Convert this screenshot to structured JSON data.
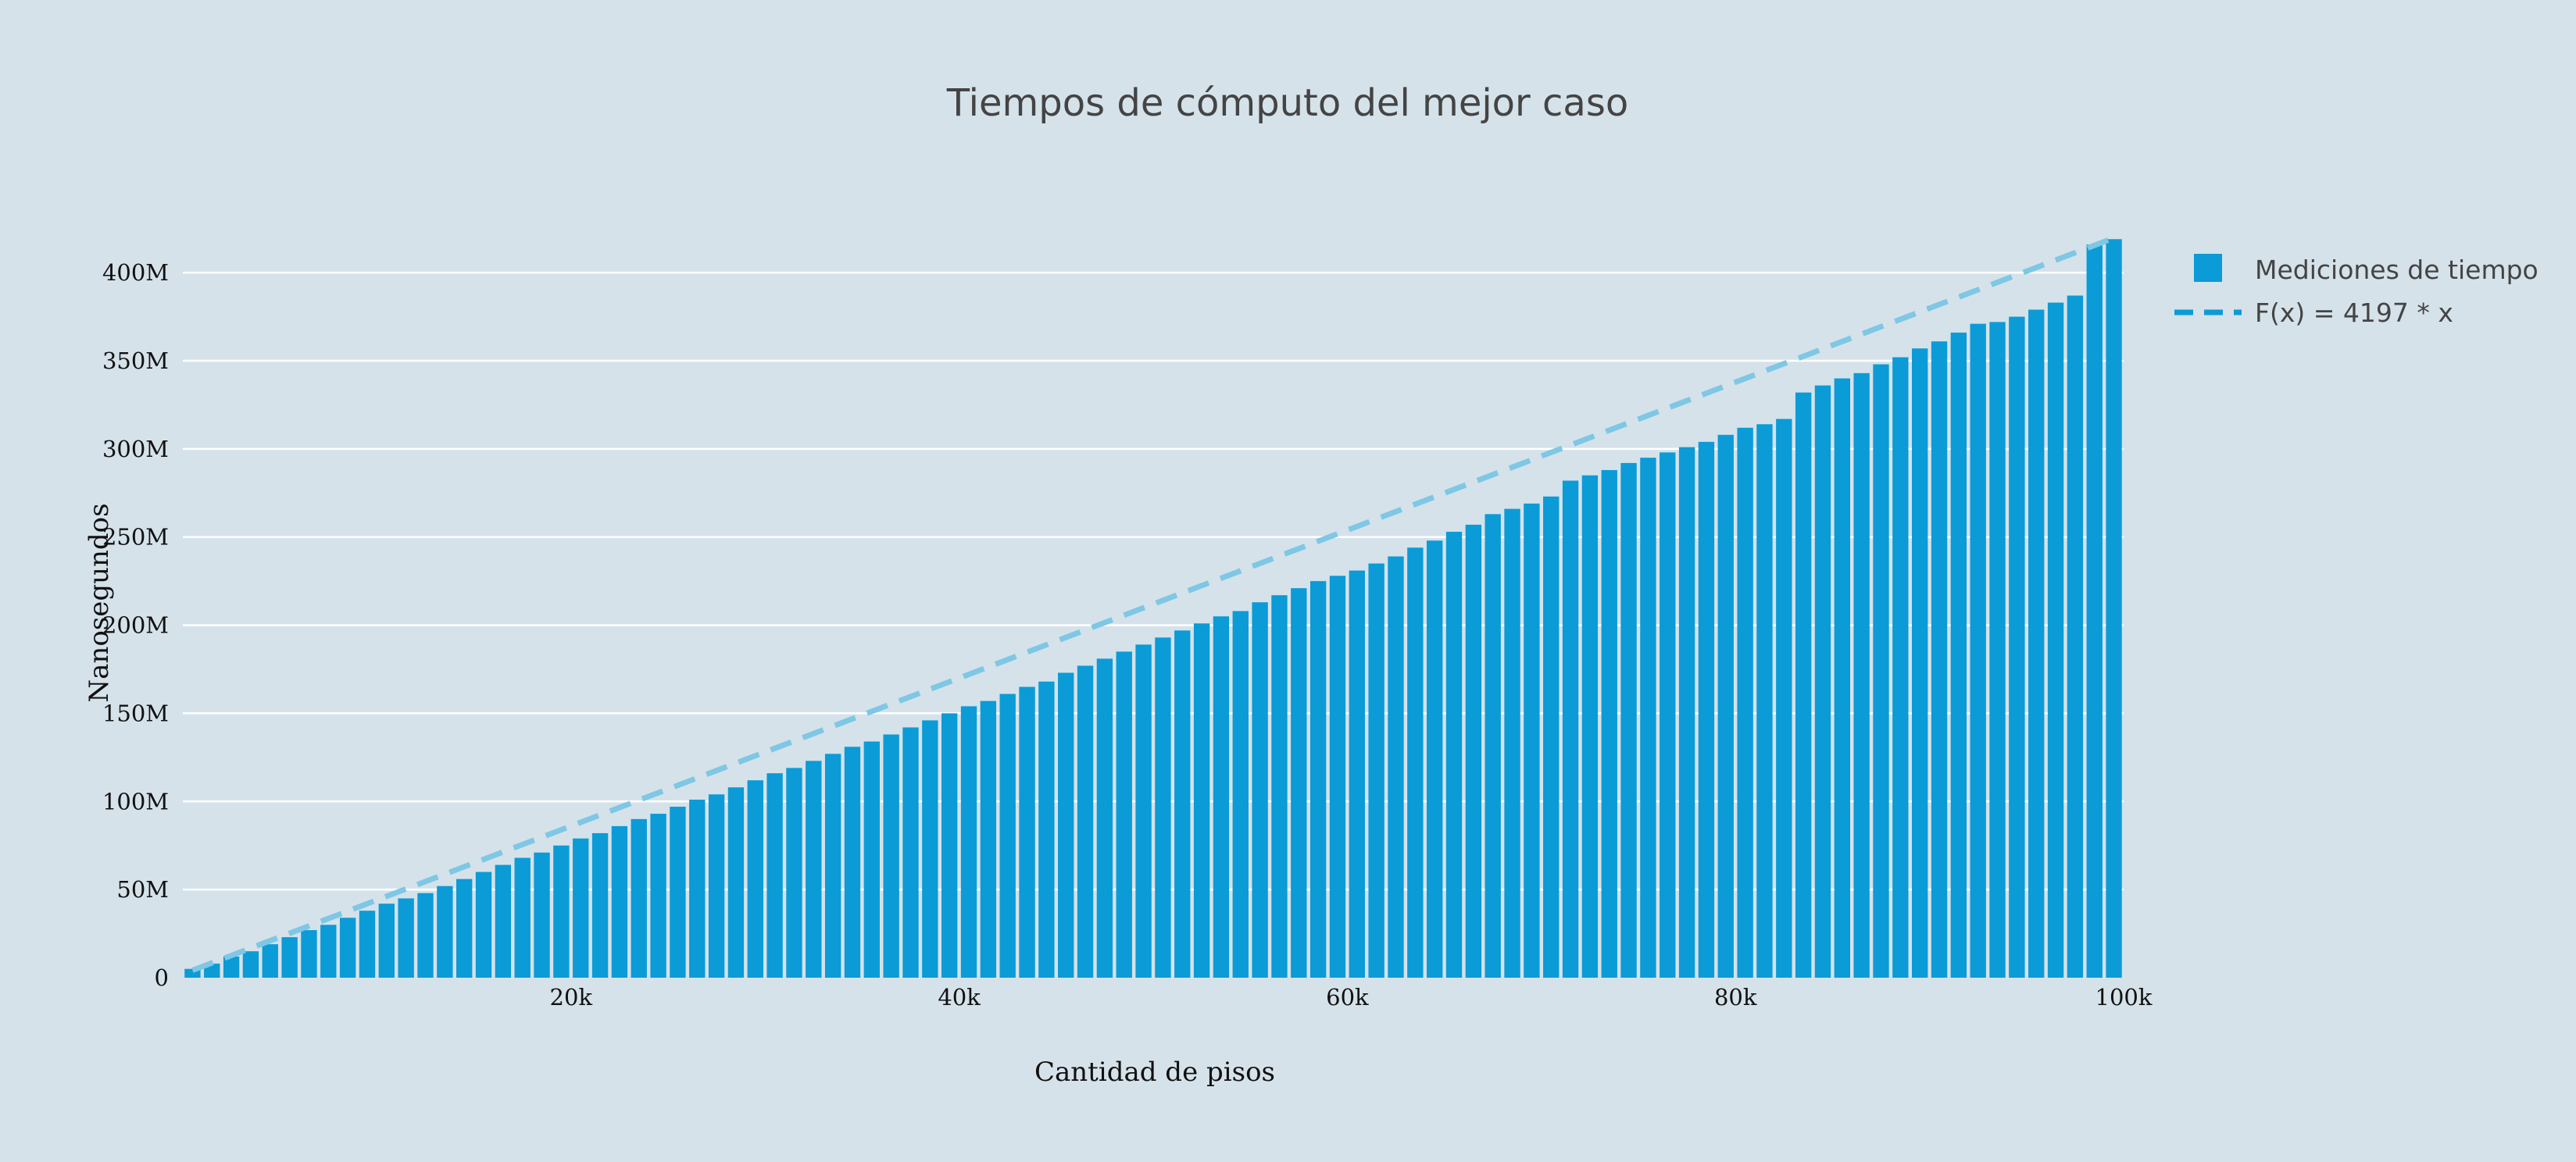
{
  "chart_data": {
    "type": "bar",
    "title": "Tiempos de cómputo del mejor caso",
    "xlabel": "Cantidad de pisos",
    "ylabel": "Nanosegundos",
    "xlim": [
      0,
      100000
    ],
    "ylim": [
      0,
      420000000
    ],
    "x_ticks": [
      {
        "value": 20000,
        "label": "20k"
      },
      {
        "value": 40000,
        "label": "40k"
      },
      {
        "value": 60000,
        "label": "60k"
      },
      {
        "value": 80000,
        "label": "80k"
      },
      {
        "value": 100000,
        "label": "100k"
      }
    ],
    "y_ticks": [
      {
        "value": 0,
        "label": "0"
      },
      {
        "value": 50000000,
        "label": "50M"
      },
      {
        "value": 100000000,
        "label": "100M"
      },
      {
        "value": 150000000,
        "label": "150M"
      },
      {
        "value": 200000000,
        "label": "200M"
      },
      {
        "value": 250000000,
        "label": "250M"
      },
      {
        "value": 300000000,
        "label": "300M"
      },
      {
        "value": 350000000,
        "label": "350M"
      },
      {
        "value": 400000000,
        "label": "400M"
      }
    ],
    "grid": true,
    "legend_position": "top-right",
    "colors": {
      "background": "#d5e2ea",
      "bars": "#0b9bd7",
      "line": "#7ec7e5",
      "legend_line": "#0b9bd7"
    },
    "series": [
      {
        "name": "Mediciones de tiempo",
        "type": "bar",
        "x": [
          1000,
          2000,
          3000,
          4000,
          5000,
          6000,
          7000,
          8000,
          9000,
          10000,
          11000,
          12000,
          13000,
          14000,
          15000,
          16000,
          17000,
          18000,
          19000,
          20000,
          21000,
          22000,
          23000,
          24000,
          25000,
          26000,
          27000,
          28000,
          29000,
          30000,
          31000,
          32000,
          33000,
          34000,
          35000,
          36000,
          37000,
          38000,
          39000,
          40000,
          41000,
          42000,
          43000,
          44000,
          45000,
          46000,
          47000,
          48000,
          49000,
          50000,
          51000,
          52000,
          53000,
          54000,
          55000,
          56000,
          57000,
          58000,
          59000,
          60000,
          61000,
          62000,
          63000,
          64000,
          65000,
          66000,
          67000,
          68000,
          69000,
          70000,
          71000,
          72000,
          73000,
          74000,
          75000,
          76000,
          77000,
          78000,
          79000,
          80000,
          81000,
          82000,
          83000,
          84000,
          85000,
          86000,
          87000,
          88000,
          89000,
          90000,
          91000,
          92000,
          93000,
          94000,
          95000,
          96000,
          97000,
          98000,
          99000,
          100000
        ],
        "values": [
          5000000,
          8000000,
          12000000,
          15000000,
          19000000,
          23000000,
          27000000,
          30000000,
          34000000,
          38000000,
          42000000,
          45000000,
          48000000,
          52000000,
          56000000,
          60000000,
          64000000,
          68000000,
          71000000,
          75000000,
          79000000,
          82000000,
          86000000,
          90000000,
          93000000,
          97000000,
          101000000,
          104000000,
          108000000,
          112000000,
          116000000,
          119000000,
          123000000,
          127000000,
          131000000,
          134000000,
          138000000,
          142000000,
          146000000,
          150000000,
          154000000,
          157000000,
          161000000,
          165000000,
          168000000,
          173000000,
          177000000,
          181000000,
          185000000,
          189000000,
          193000000,
          197000000,
          201000000,
          205000000,
          208000000,
          213000000,
          217000000,
          221000000,
          225000000,
          228000000,
          231000000,
          235000000,
          239000000,
          244000000,
          248000000,
          253000000,
          257000000,
          263000000,
          266000000,
          269000000,
          273000000,
          282000000,
          285000000,
          288000000,
          292000000,
          295000000,
          298000000,
          301000000,
          304000000,
          308000000,
          312000000,
          314000000,
          317000000,
          332000000,
          336000000,
          340000000,
          343000000,
          348000000,
          352000000,
          357000000,
          361000000,
          366000000,
          371000000,
          372000000,
          375000000,
          379000000,
          383000000,
          387000000,
          416000000,
          419000000
        ]
      },
      {
        "name": "F(x) = 4197 * x",
        "type": "line",
        "dash": "dashed",
        "x": [
          1000,
          100000
        ],
        "values": [
          4197000,
          419700000
        ]
      }
    ]
  }
}
